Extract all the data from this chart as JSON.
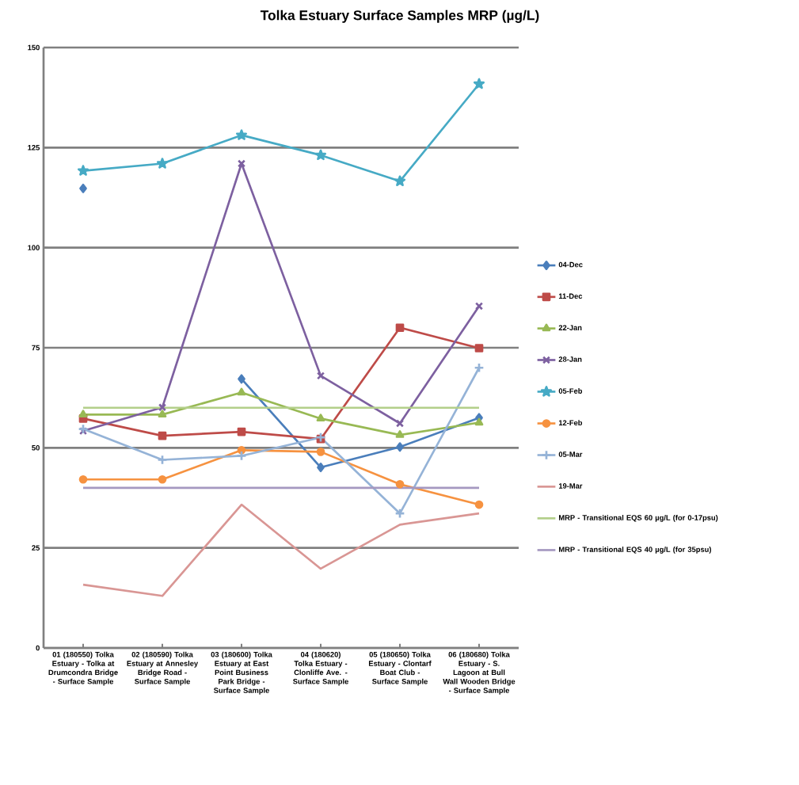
{
  "chart_data": {
    "type": "line",
    "title": "Tolka Estuary Surface Samples MRP (µg/L)",
    "categories": [
      "01 (180550) Tolka Estuary - Tolka at Drumcondra Bridge - Surface Sample",
      "02 (180590) Tolka Estuary at Annesley Bridge Road - Surface Sample",
      "03 (180600) Tolka Estuary at East Point Business Park Bridge - Surface Sample",
      "04 (180620) Tolka Estuary - Clonliffe Ave. - Surface Sample",
      "05 (180650) Tolka Estuary - Clontarf Boat Club - Surface Sample",
      "06 (180680) Tolka Estuary - S. Lagoon at Bull Wall Wooden Bridge - Surface Sample"
    ],
    "series": [
      {
        "name": "04-Dec",
        "color": "#4a7ebb",
        "marker": "diamond",
        "values": [
          114.8,
          null,
          67.2,
          45.1,
          50.2,
          57.5
        ]
      },
      {
        "name": "11-Dec",
        "color": "#be4b48",
        "marker": "square",
        "values": [
          57.3,
          53.0,
          54.0,
          52.2,
          80.0,
          74.9
        ]
      },
      {
        "name": "22-Jan",
        "color": "#98b954",
        "marker": "triangle",
        "values": [
          58.3,
          58.3,
          63.8,
          57.3,
          53.2,
          56.3
        ]
      },
      {
        "name": "28-Jan",
        "color": "#7d60a0",
        "marker": "cross",
        "values": [
          54.2,
          60.1,
          121.0,
          68.0,
          56.1,
          85.4
        ]
      },
      {
        "name": "05-Feb",
        "color": "#46aac5",
        "marker": "star",
        "values": [
          119.2,
          121.0,
          128.1,
          123.1,
          116.6,
          140.9
        ]
      },
      {
        "name": "12-Feb",
        "color": "#f69240",
        "marker": "circle",
        "values": [
          42.1,
          42.1,
          49.4,
          49.0,
          40.9,
          35.8
        ]
      },
      {
        "name": "05-Mar",
        "color": "#95b3d7",
        "marker": "plus",
        "values": [
          54.7,
          47.0,
          48.0,
          52.6,
          33.6,
          70.0
        ]
      },
      {
        "name": "19-Mar",
        "color": "#d99694",
        "marker": "none",
        "values": [
          15.8,
          13.0,
          35.8,
          19.8,
          30.8,
          33.6
        ]
      },
      {
        "name": "MRP - Transitional EQS 60 µg/L (for 0-17psu)",
        "color": "#b3cf8a",
        "marker": "none",
        "values": [
          60,
          60,
          60,
          60,
          60,
          60
        ]
      },
      {
        "name": "MRP - Transitional EQS 40 µg/L (for 35psu)",
        "color": "#a598c0",
        "marker": "none",
        "values": [
          40,
          40,
          40,
          40,
          40,
          40
        ]
      }
    ],
    "ylim": [
      0,
      150
    ],
    "yticks": [
      0,
      25,
      50,
      75,
      100,
      125,
      150
    ],
    "grid": "y",
    "legend": "right"
  }
}
